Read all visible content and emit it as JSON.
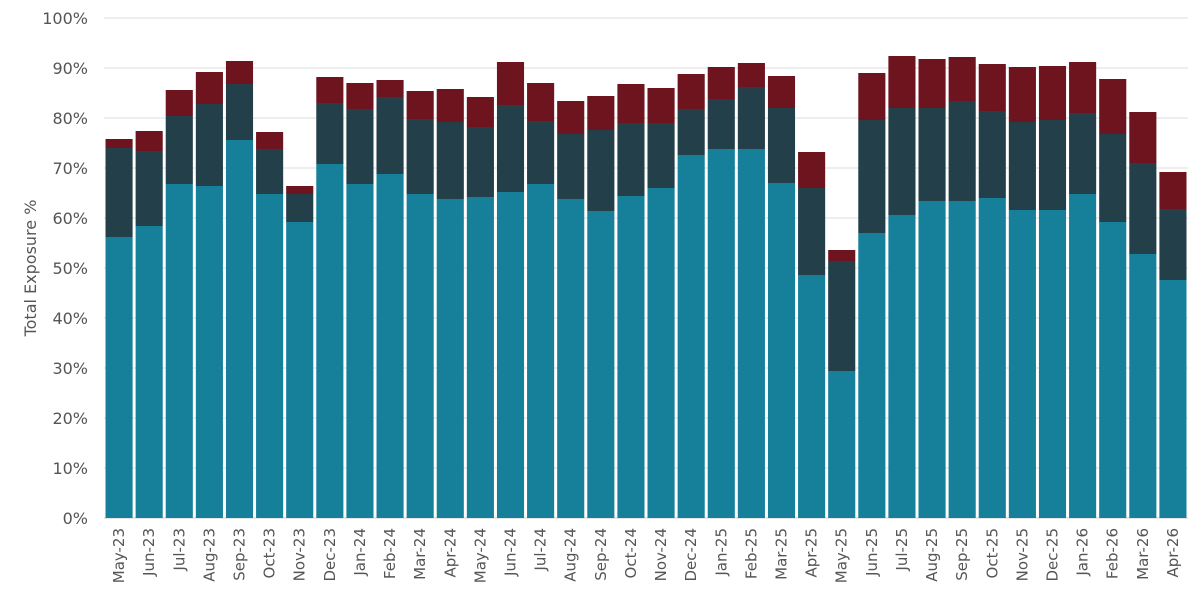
{
  "chart_data": {
    "type": "bar",
    "stacked": true,
    "title": "",
    "xlabel": "",
    "ylabel": "Total Exposure %",
    "ylim": [
      0,
      100
    ],
    "yticks": [
      "0%",
      "10%",
      "20%",
      "30%",
      "40%",
      "50%",
      "60%",
      "70%",
      "80%",
      "90%",
      "100%"
    ],
    "grid": true,
    "legend": "none",
    "categories": [
      "May-23",
      "Jun-23",
      "Jul-23",
      "Aug-23",
      "Sep-23",
      "Oct-23",
      "Nov-23",
      "Dec-23",
      "Jan-24",
      "Feb-24",
      "Mar-24",
      "Apr-24",
      "May-24",
      "Jun-24",
      "Jul-24",
      "Aug-24",
      "Sep-24",
      "Oct-24",
      "Nov-24",
      "Dec-24",
      "Jan-25",
      "Feb-25",
      "Mar-25",
      "Apr-25",
      "May-25",
      "Jun-25",
      "Jul-25",
      "Aug-25",
      "Sep-25",
      "Oct-25",
      "Nov-25",
      "Dec-25",
      "Jan-26",
      "Feb-26",
      "Mar-26",
      "Apr-26"
    ],
    "series": [
      {
        "color": "#16809b",
        "values": [
          56.2,
          58.4,
          66.8,
          66.4,
          75.6,
          64.8,
          59.2,
          70.8,
          66.8,
          68.8,
          64.8,
          63.8,
          64.2,
          65.2,
          66.8,
          63.8,
          61.4,
          64.4,
          66.0,
          72.6,
          73.8,
          73.8,
          67.0,
          48.6,
          29.4,
          57.0,
          60.6,
          63.4,
          63.4,
          64.0,
          61.6,
          61.6,
          64.8,
          59.2,
          52.8,
          47.6
        ]
      },
      {
        "color": "#233f4a",
        "values": [
          17.8,
          15.0,
          13.6,
          16.4,
          11.2,
          9.0,
          5.6,
          12.2,
          15.0,
          15.4,
          15.0,
          15.4,
          14.0,
          17.4,
          12.6,
          13.0,
          16.2,
          14.6,
          13.0,
          9.2,
          10.0,
          12.4,
          15.0,
          17.4,
          22.0,
          22.6,
          21.4,
          18.6,
          20.0,
          17.4,
          17.6,
          18.0,
          16.2,
          17.6,
          18.2,
          14.2
        ]
      },
      {
        "color": "#6e141e",
        "values": [
          1.8,
          4.0,
          5.2,
          6.4,
          4.6,
          3.4,
          1.6,
          5.2,
          5.2,
          3.4,
          5.6,
          6.6,
          6.0,
          8.6,
          7.6,
          6.6,
          6.8,
          7.8,
          7.0,
          7.0,
          6.4,
          4.8,
          6.4,
          7.2,
          2.2,
          9.4,
          10.4,
          9.8,
          8.8,
          9.4,
          11.0,
          10.8,
          10.2,
          11.0,
          10.2,
          7.4
        ]
      }
    ]
  }
}
